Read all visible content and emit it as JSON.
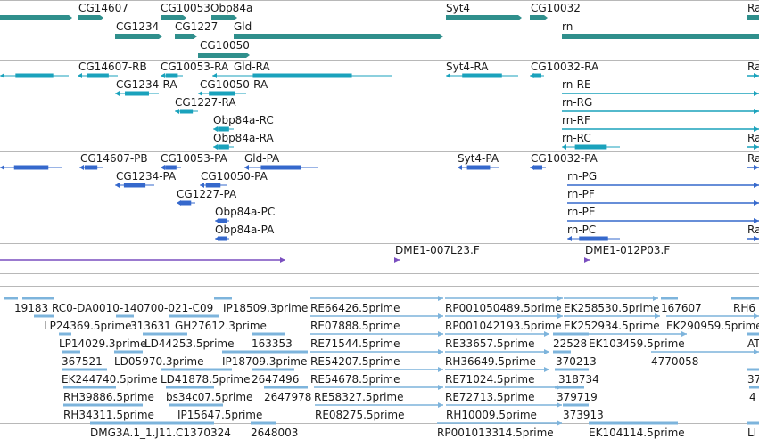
{
  "colors": {
    "gene": "#2f8f8c",
    "transcript": "#1aa2bc",
    "protein": "#3568cc",
    "clone": "#7a4fbf",
    "est": "#7db4dc"
  },
  "tracks": [
    {
      "id": "genes",
      "color": "gene",
      "features": [
        {
          "label": "",
          "row": 0
        },
        {
          "label": "CG14607",
          "row": 0
        },
        {
          "label": "CG10053",
          "row": 0
        },
        {
          "label": "Obp84a",
          "row": 0
        },
        {
          "label": "Syt4",
          "row": 0
        },
        {
          "label": "CG10032",
          "row": 0
        },
        {
          "label": "Ra",
          "row": 0
        },
        {
          "label": "CG1234",
          "row": 1
        },
        {
          "label": "CG1227",
          "row": 1
        },
        {
          "label": "Gld",
          "row": 1
        },
        {
          "label": "rn",
          "row": 1
        },
        {
          "label": "CG10050",
          "row": 2
        }
      ]
    },
    {
      "id": "transcripts",
      "color": "transcript",
      "features": [
        {
          "label": "",
          "row": 0
        },
        {
          "label": "CG14607-RB",
          "row": 0
        },
        {
          "label": "CG10053-RA",
          "row": 0
        },
        {
          "label": "Gld-RA",
          "row": 0
        },
        {
          "label": "Syt4-RA",
          "row": 0
        },
        {
          "label": "CG10032-RA",
          "row": 0
        },
        {
          "label": "Ra",
          "row": 0
        },
        {
          "label": "CG1234-RA",
          "row": 1
        },
        {
          "label": "CG10050-RA",
          "row": 1
        },
        {
          "label": "rn-RE",
          "row": 1
        },
        {
          "label": "CG1227-RA",
          "row": 2
        },
        {
          "label": "rn-RG",
          "row": 2
        },
        {
          "label": "Obp84a-RC",
          "row": 3
        },
        {
          "label": "rn-RF",
          "row": 3
        },
        {
          "label": "Obp84a-RA",
          "row": 4
        },
        {
          "label": "rn-RC",
          "row": 4
        },
        {
          "label": "Ra",
          "row": 4
        }
      ]
    },
    {
      "id": "proteins",
      "color": "protein",
      "features": [
        {
          "label": "",
          "row": 0
        },
        {
          "label": "CG14607-PB",
          "row": 0
        },
        {
          "label": "CG10053-PA",
          "row": 0
        },
        {
          "label": "Gld-PA",
          "row": 0
        },
        {
          "label": "Syt4-PA",
          "row": 0
        },
        {
          "label": "CG10032-PA",
          "row": 0
        },
        {
          "label": "Ra",
          "row": 0
        },
        {
          "label": "CG1234-PA",
          "row": 1
        },
        {
          "label": "CG10050-PA",
          "row": 1
        },
        {
          "label": "rn-PG",
          "row": 1
        },
        {
          "label": "CG1227-PA",
          "row": 2
        },
        {
          "label": "rn-PF",
          "row": 2
        },
        {
          "label": "Obp84a-PC",
          "row": 3
        },
        {
          "label": "rn-PE",
          "row": 3
        },
        {
          "label": "Obp84a-PA",
          "row": 4
        },
        {
          "label": "rn-PC",
          "row": 4
        },
        {
          "label": "Ra",
          "row": 4
        }
      ]
    },
    {
      "id": "clones",
      "color": "clone",
      "features": [
        {
          "label": "",
          "row": 0
        },
        {
          "label": "DME1-007L23.F",
          "row": 0
        },
        {
          "label": "DME1-012P03.F",
          "row": 0
        }
      ]
    },
    {
      "id": "ests",
      "color": "est",
      "features": [
        {
          "label": "19183",
          "row": 0
        },
        {
          "label": "RC0-DA0010-140700-021-C09",
          "row": 0
        },
        {
          "label": "IP18509.3prime",
          "row": 0
        },
        {
          "label": "RE66426.5prime",
          "row": 0
        },
        {
          "label": "RP001050489.5prime",
          "row": 0
        },
        {
          "label": "EK258530.5prime",
          "row": 0
        },
        {
          "label": "167607",
          "row": 0
        },
        {
          "label": "RH6",
          "row": 0
        },
        {
          "label": "LP24369.5prime",
          "row": 1
        },
        {
          "label": "313631",
          "row": 1
        },
        {
          "label": "GH27612.3prime",
          "row": 1
        },
        {
          "label": "RE07888.5prime",
          "row": 1
        },
        {
          "label": "RP001042193.5prime",
          "row": 1
        },
        {
          "label": "EK252934.5prime",
          "row": 1
        },
        {
          "label": "EK290959.5prime",
          "row": 1
        },
        {
          "label": "LP14029.3prime",
          "row": 2
        },
        {
          "label": "LD44253.5prime",
          "row": 2
        },
        {
          "label": "163353",
          "row": 2
        },
        {
          "label": "RE71544.5prime",
          "row": 2
        },
        {
          "label": "RE33657.5prime",
          "row": 2
        },
        {
          "label": "22528",
          "row": 2
        },
        {
          "label": "EK103459.5prime",
          "row": 2
        },
        {
          "label": "AT",
          "row": 2
        },
        {
          "label": "367521",
          "row": 3
        },
        {
          "label": "LD05970.3prime",
          "row": 3
        },
        {
          "label": "IP18709.3prime",
          "row": 3
        },
        {
          "label": "RE54207.5prime",
          "row": 3
        },
        {
          "label": "RH36649.5prime",
          "row": 3
        },
        {
          "label": "370213",
          "row": 3
        },
        {
          "label": "4770058",
          "row": 3
        },
        {
          "label": "EK244740.5prime",
          "row": 4
        },
        {
          "label": "LD41878.5prime",
          "row": 4
        },
        {
          "label": "2647496",
          "row": 4
        },
        {
          "label": "RE54678.5prime",
          "row": 4
        },
        {
          "label": "RE71024.5prime",
          "row": 4
        },
        {
          "label": "318734",
          "row": 4
        },
        {
          "label": "37",
          "row": 4
        },
        {
          "label": "RH39886.5prime",
          "row": 5
        },
        {
          "label": "bs34c07.5prime",
          "row": 5
        },
        {
          "label": "2647978",
          "row": 5
        },
        {
          "label": "RE58327.5prime",
          "row": 5
        },
        {
          "label": "RE72713.5prime",
          "row": 5
        },
        {
          "label": "379719",
          "row": 5
        },
        {
          "label": "4",
          "row": 5
        },
        {
          "label": "RH34311.5prime",
          "row": 6
        },
        {
          "label": "IP15647.5prime",
          "row": 6
        },
        {
          "label": "RE08275.5prime",
          "row": 6
        },
        {
          "label": "RH10009.5prime",
          "row": 6
        },
        {
          "label": "373913",
          "row": 6
        },
        {
          "label": "DMG3A.1_1.J11.C1370324",
          "row": 7
        },
        {
          "label": "2648003",
          "row": 7
        },
        {
          "label": "RP001013314.5prime",
          "row": 7
        },
        {
          "label": "EK104114.5prime",
          "row": 7
        },
        {
          "label": "LI",
          "row": 7
        }
      ]
    }
  ]
}
